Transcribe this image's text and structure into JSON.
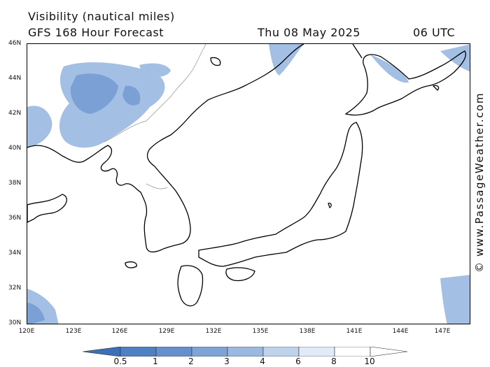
{
  "header": {
    "title": "Visibility (nautical miles)",
    "subtitle": "GFS 168 Hour Forecast",
    "date": "Thu 08 May 2025",
    "time": "06 UTC"
  },
  "map": {
    "lat_labels": [
      "46N",
      "44N",
      "42N",
      "40N",
      "38N",
      "36N",
      "34N",
      "32N",
      "30N"
    ],
    "lon_labels": [
      "120E",
      "123E",
      "126E",
      "129E",
      "132E",
      "135E",
      "138E",
      "141E",
      "144E",
      "147E"
    ],
    "land_color": "#ffffff",
    "line_color": "#000000",
    "border_color": "#9a9a9a",
    "low_visibility_color": "#8fb2de"
  },
  "credit": "© www.PassageWeather.com",
  "legend": {
    "labels": [
      "0.5",
      "1",
      "2",
      "3",
      "4",
      "6",
      "8",
      "10"
    ],
    "colors": [
      "#3b6fb6",
      "#4f80c4",
      "#6590cc",
      "#7ea3d6",
      "#9bb8e0",
      "#bfd2ec",
      "#e1ebf7",
      "#ffffff"
    ]
  }
}
